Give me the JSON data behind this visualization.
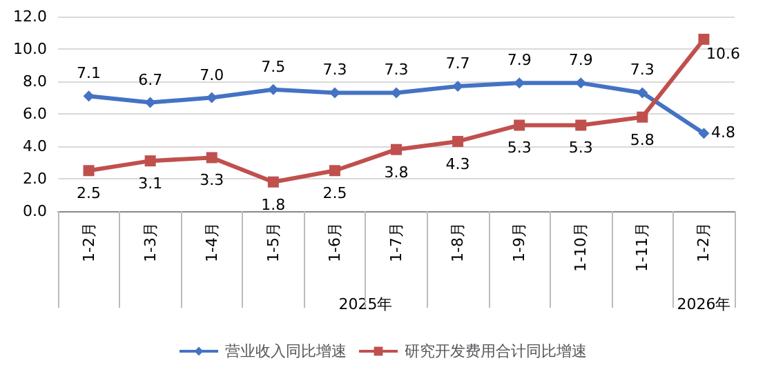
{
  "chart_data": {
    "type": "line",
    "categories": [
      "1-2月",
      "1-3月",
      "1-4月",
      "1-5月",
      "1-6月",
      "1-7月",
      "1-8月",
      "1-9月",
      "1-10月",
      "1-11月",
      "1-2月"
    ],
    "series": [
      {
        "name": "营业收入同比增速",
        "color": "#4472c4",
        "marker": "diamond",
        "values": [
          7.1,
          6.7,
          7.0,
          7.5,
          7.3,
          7.3,
          7.7,
          7.9,
          7.9,
          7.3,
          4.8
        ],
        "value_labels": [
          "7.1",
          "6.7",
          "7.0",
          "7.5",
          "7.3",
          "7.3",
          "7.7",
          "7.9",
          "7.9",
          "7.3",
          "4.8"
        ]
      },
      {
        "name": "研究开发费用合计同比增速",
        "color": "#c0504d",
        "marker": "square",
        "values": [
          2.5,
          3.1,
          3.3,
          1.8,
          2.5,
          3.8,
          4.3,
          5.3,
          5.3,
          5.8,
          10.6
        ],
        "value_labels": [
          "2.5",
          "3.1",
          "3.3",
          "1.8",
          "2.5",
          "3.8",
          "4.3",
          "5.3",
          "5.3",
          "5.8",
          "10.6"
        ]
      }
    ],
    "ylim": [
      0,
      12
    ],
    "yticks": [
      {
        "value": 0,
        "label": "0.0"
      },
      {
        "value": 2,
        "label": "2.0"
      },
      {
        "value": 4,
        "label": "4.0"
      },
      {
        "value": 6,
        "label": "6.0"
      },
      {
        "value": 8,
        "label": "8.0"
      },
      {
        "value": 10,
        "label": "10.0"
      },
      {
        "value": 12,
        "label": "12.0"
      }
    ],
    "grid": "y",
    "legend": "bottom",
    "annotations": [
      "2025年",
      "2026年"
    ]
  }
}
